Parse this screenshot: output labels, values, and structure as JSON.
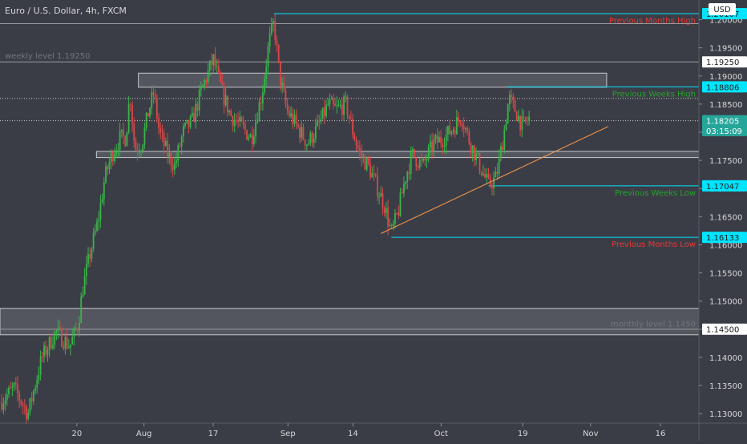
{
  "header": {
    "title": "Euro / U.S. Dollar, 4h, FXCM",
    "currency": "USD"
  },
  "colors": {
    "background": "#3b3d46",
    "up": "#3bb34a",
    "down": "#d94848",
    "cyan": "#00e5ff",
    "trendline": "#ff9a4a",
    "axis_text": "#d7d7d7",
    "grey_label": "#72757d",
    "green_label": "#26a32b",
    "red_label": "#e53935"
  },
  "chart_data": {
    "type": "candlestick",
    "title": "Euro / U.S. Dollar, 4h, FXCM",
    "ylim": [
      1.1283,
      1.2035
    ],
    "y_ticks": [
      "1.20000",
      "1.19500",
      "1.19000",
      "1.18500",
      "1.18000",
      "1.17500",
      "1.17000",
      "1.16500",
      "1.16000",
      "1.15500",
      "1.15000",
      "1.14500",
      "1.14000",
      "1.13500",
      "1.13000"
    ],
    "x_ticks": [
      "20",
      "Aug",
      "17",
      "Sep",
      "14",
      "Oct",
      "19",
      "Nov",
      "16"
    ],
    "price_tags": [
      {
        "id": "pm-high",
        "text": "1.20107",
        "value": 1.20107
      },
      {
        "id": "weekly-level",
        "text": "1.19250",
        "value": 1.1925
      },
      {
        "id": "pw-high",
        "text": "1.18806",
        "value": 1.18806
      },
      {
        "id": "last-price",
        "text": "1.18205",
        "value": 1.18205
      },
      {
        "id": "countdown",
        "text": "03:15:09",
        "value": 1.1803
      },
      {
        "id": "pw-low",
        "text": "1.17047",
        "value": 1.17047
      },
      {
        "id": "pm-low",
        "text": "1.16133",
        "value": 1.16133
      },
      {
        "id": "monthly-level",
        "text": "1.14500",
        "value": 1.145
      }
    ],
    "annotations": [
      {
        "id": "pm-high-label",
        "text": "Previous Months High",
        "value": 1.20107,
        "color": "red"
      },
      {
        "id": "weekly-label",
        "text": "weekly level 1.19250",
        "value": 1.1925,
        "color": "grey"
      },
      {
        "id": "pw-high-label",
        "text": "Previous Weeks High",
        "value": 1.18806,
        "color": "green"
      },
      {
        "id": "pw-low-label",
        "text": "Previous Weeks Low",
        "value": 1.17047,
        "color": "green"
      },
      {
        "id": "pm-low-label",
        "text": "Previous Months Low",
        "value": 1.16133,
        "color": "red"
      },
      {
        "id": "monthly-label",
        "text": "monthly level 1.1450",
        "value": 1.145,
        "color": "grey"
      }
    ],
    "zones": [
      {
        "id": "resistance-zone",
        "y_top": 1.1905,
        "y_bottom": 1.188
      },
      {
        "id": "support-zone",
        "y_top": 1.1766,
        "y_bottom": 1.1755
      },
      {
        "id": "monthly-zone",
        "y_top": 1.1487,
        "y_bottom": 1.144
      }
    ],
    "horizontal_levels": [
      {
        "id": "upper-grey-line",
        "value": 1.1993,
        "style": "solid"
      },
      {
        "id": "weekly-level-line",
        "value": 1.1925,
        "style": "solid"
      },
      {
        "id": "dotted-level",
        "value": 1.186,
        "style": "dotted"
      },
      {
        "id": "last-price-line",
        "value": 1.18205,
        "style": "dotted"
      },
      {
        "id": "monthly-level-line",
        "value": 1.145,
        "style": "solid"
      }
    ],
    "anchored_lines": [
      {
        "id": "pm-high-line",
        "start_t": 0.392,
        "value": 1.20107
      },
      {
        "id": "pw-high-line",
        "start_t": 0.725,
        "value": 1.18806
      },
      {
        "id": "pw-low-line",
        "start_t": 0.699,
        "value": 1.17047
      },
      {
        "id": "pm-low-line",
        "start_t": 0.56,
        "value": 1.16133
      }
    ],
    "trendline": {
      "t1": 0.545,
      "y1": 1.162,
      "t2": 0.87,
      "y2": 1.181
    },
    "price_path": [
      [
        0.0,
        1.132
      ],
      [
        0.02,
        1.1345
      ],
      [
        0.04,
        1.13
      ],
      [
        0.06,
        1.14
      ],
      [
        0.08,
        1.1445
      ],
      [
        0.1,
        1.142
      ],
      [
        0.112,
        1.146
      ],
      [
        0.118,
        1.152
      ],
      [
        0.128,
        1.158
      ],
      [
        0.14,
        1.164
      ],
      [
        0.15,
        1.172
      ],
      [
        0.16,
        1.176
      ],
      [
        0.172,
        1.179
      ],
      [
        0.18,
        1.179
      ],
      [
        0.186,
        1.187
      ],
      [
        0.193,
        1.177
      ],
      [
        0.203,
        1.178
      ],
      [
        0.213,
        1.184
      ],
      [
        0.22,
        1.187
      ],
      [
        0.228,
        1.18
      ],
      [
        0.24,
        1.176
      ],
      [
        0.25,
        1.174
      ],
      [
        0.262,
        1.18
      ],
      [
        0.275,
        1.182
      ],
      [
        0.29,
        1.188
      ],
      [
        0.305,
        1.193
      ],
      [
        0.318,
        1.187
      ],
      [
        0.33,
        1.183
      ],
      [
        0.345,
        1.181
      ],
      [
        0.36,
        1.179
      ],
      [
        0.375,
        1.187
      ],
      [
        0.385,
        1.196
      ],
      [
        0.392,
        1.1995
      ],
      [
        0.4,
        1.19
      ],
      [
        0.41,
        1.184
      ],
      [
        0.425,
        1.181
      ],
      [
        0.44,
        1.178
      ],
      [
        0.455,
        1.181
      ],
      [
        0.47,
        1.185
      ],
      [
        0.48,
        1.184
      ],
      [
        0.495,
        1.185
      ],
      [
        0.505,
        1.18
      ],
      [
        0.515,
        1.176
      ],
      [
        0.527,
        1.174
      ],
      [
        0.54,
        1.17
      ],
      [
        0.55,
        1.167
      ],
      [
        0.56,
        1.162
      ],
      [
        0.57,
        1.166
      ],
      [
        0.58,
        1.172
      ],
      [
        0.59,
        1.176
      ],
      [
        0.605,
        1.174
      ],
      [
        0.62,
        1.178
      ],
      [
        0.635,
        1.179
      ],
      [
        0.65,
        1.181
      ],
      [
        0.66,
        1.183
      ],
      [
        0.67,
        1.179
      ],
      [
        0.68,
        1.176
      ],
      [
        0.69,
        1.173
      ],
      [
        0.699,
        1.1705
      ],
      [
        0.71,
        1.172
      ],
      [
        0.72,
        1.179
      ],
      [
        0.728,
        1.186
      ],
      [
        0.737,
        1.184
      ],
      [
        0.748,
        1.181
      ],
      [
        0.757,
        1.1825
      ]
    ]
  }
}
